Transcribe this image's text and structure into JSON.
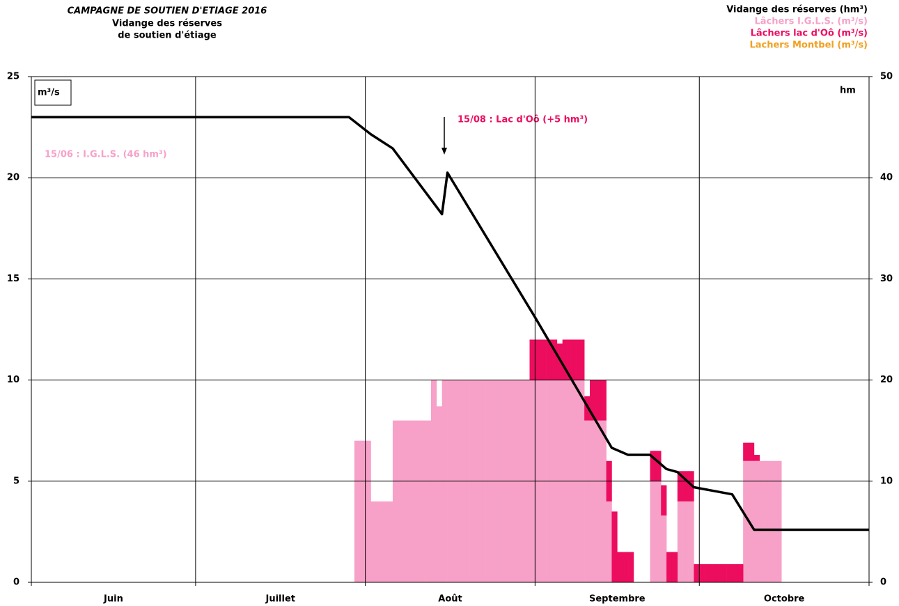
{
  "chart_data": {
    "type": "bar",
    "title": "CAMPAGNE DE SOUTIEN D'ETIAGE 2016",
    "subtitle": [
      "Vidange des réserves",
      "de soutien d'étiage"
    ],
    "ylabel": "m³/s",
    "y2label": "hm",
    "categories": [
      "Juin",
      "Juillet",
      "Août",
      "Septembre",
      "Octobre"
    ],
    "xlim": [
      0,
      153
    ],
    "xticks": [
      0,
      30,
      61,
      92,
      122,
      153
    ],
    "ylim": [
      0,
      25
    ],
    "yticks": [
      0,
      5,
      10,
      15,
      20,
      25
    ],
    "y2lim": [
      0,
      50
    ],
    "y2ticks": [
      0,
      10,
      20,
      30,
      40,
      50
    ],
    "grid": true,
    "legend": "top-right",
    "annotations": [
      "15/08 : Lac d'Oô (+5 hm³)",
      "15/06 : I.G.L.S. (46 hm³)"
    ],
    "x": [
      59,
      60,
      61,
      62,
      63,
      64,
      65,
      66,
      67,
      68,
      69,
      70,
      71,
      72,
      73,
      74,
      75,
      76,
      77,
      78,
      79,
      80,
      81,
      82,
      83,
      84,
      85,
      86,
      87,
      88,
      89,
      90,
      91,
      92,
      93,
      94,
      95,
      96,
      97,
      98,
      99,
      100,
      101,
      102,
      103,
      104,
      105,
      106,
      107,
      108,
      109,
      110,
      111,
      112,
      113,
      114,
      115,
      116,
      117,
      118,
      119,
      120,
      121,
      122,
      123,
      124,
      125,
      126,
      127,
      128,
      129,
      130,
      131,
      132,
      133,
      134,
      135,
      136
    ],
    "series": [
      {
        "name": "Vidange des réserves (hm³)",
        "type": "line",
        "axis": "y2",
        "color": "#000000",
        "x": [
          0,
          58,
          62,
          66,
          75,
          76,
          92,
          106,
          109,
          113,
          116,
          118,
          121,
          128,
          132,
          153
        ],
        "values": [
          46,
          46,
          44.3,
          42.9,
          36.4,
          40.5,
          26.2,
          13.3,
          12.6,
          12.6,
          11.2,
          10.9,
          9.4,
          8.7,
          5.2,
          5.2
        ]
      },
      {
        "name": "Lâchers I.G.L.S. (m³/s)",
        "type": "bar",
        "color": "#f7a1c8",
        "values": [
          7,
          7,
          7,
          4,
          4,
          4,
          4,
          8,
          8,
          8,
          8,
          8,
          8,
          8,
          10,
          8.7,
          10,
          10,
          10,
          10,
          10,
          10,
          10,
          10,
          10,
          10,
          10,
          10,
          10,
          10,
          10,
          10,
          10,
          10,
          10,
          10,
          10,
          10,
          10,
          10,
          10,
          10,
          8,
          8,
          8,
          8,
          4,
          0,
          0,
          0,
          0,
          0,
          0,
          0,
          5,
          5,
          3.3,
          0,
          0,
          4,
          4,
          4,
          0,
          0,
          0,
          0,
          0,
          0,
          0,
          0,
          0,
          6,
          6,
          6,
          6,
          6,
          6,
          6
        ]
      },
      {
        "name": "Lâchers lac d'Oô (m³/s)",
        "type": "bar",
        "color": "#ec0d5f",
        "values": [
          0,
          0,
          0,
          0,
          0,
          0,
          0,
          0,
          0,
          0,
          0,
          0,
          0,
          0,
          0,
          0,
          0,
          0,
          0,
          0,
          0,
          0,
          0,
          0,
          0,
          0,
          0,
          0,
          0,
          0,
          0,
          0,
          2,
          2,
          2,
          2,
          2,
          1.8,
          2,
          2,
          2,
          2,
          1.2,
          2,
          2,
          2,
          2,
          3.5,
          1.5,
          1.5,
          1.5,
          0,
          0,
          0,
          1.5,
          1.5,
          1.5,
          1.5,
          1.5,
          1.5,
          1.5,
          1.5,
          0.9,
          0.9,
          0.9,
          0.9,
          0.9,
          0.9,
          0.9,
          0.9,
          0.9,
          0.9,
          0.9,
          0.3,
          0,
          0,
          0,
          0
        ]
      },
      {
        "name": "Lachers Montbel (m³/s)",
        "type": "bar",
        "color": "#f0a020",
        "values": [
          0,
          0,
          0,
          0,
          0,
          0,
          0,
          0,
          0,
          0,
          0,
          0,
          0,
          0,
          0,
          0,
          0,
          0,
          0,
          0,
          0,
          0,
          0,
          0,
          0,
          0,
          0,
          0,
          0,
          0,
          0,
          0,
          0,
          0,
          0,
          0,
          0,
          0,
          0,
          0,
          0,
          0,
          0,
          0,
          0,
          0,
          0,
          0,
          0,
          0,
          0,
          0,
          0,
          0,
          0,
          0,
          0,
          0,
          0,
          0,
          0,
          0,
          0,
          0,
          0,
          0,
          0,
          0,
          0,
          0,
          0,
          0,
          0,
          0,
          0,
          0,
          0,
          0
        ]
      }
    ]
  }
}
